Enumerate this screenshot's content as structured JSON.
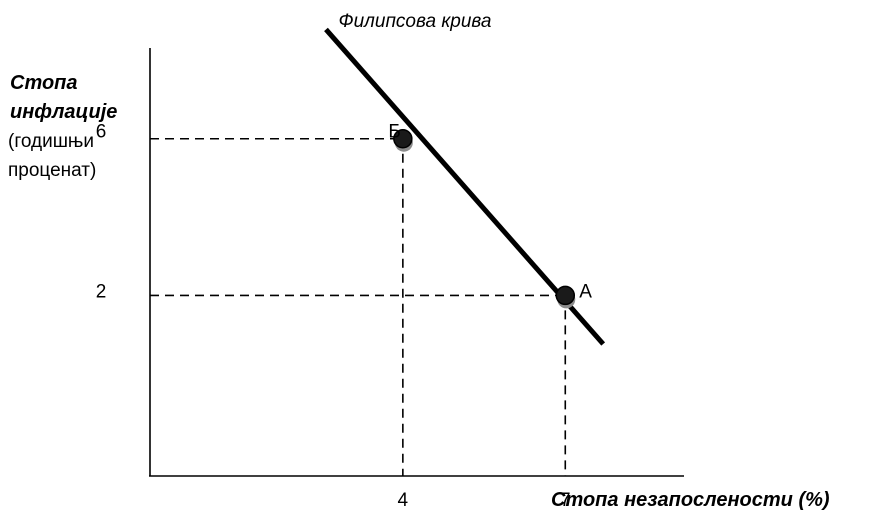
{
  "chart_data": {
    "type": "line",
    "title": "Филипсова крива",
    "ylabel": [
      "Стопа",
      "инфлације",
      "(годишњи",
      "проценат)"
    ],
    "xlabel": "Стопа незапослености (%)",
    "x_ticks": [
      4,
      7
    ],
    "y_ticks": [
      2,
      6
    ],
    "xlim": [
      -0.67,
      12
    ],
    "ylim": [
      -2.61,
      9.21
    ],
    "grid": false,
    "legend": "none",
    "series": [
      {
        "x": [
          2.58,
          7.7
        ],
        "y": [
          8.79,
          0.76
        ],
        "color": "#000000"
      }
    ],
    "points": [
      {
        "label": "Б",
        "x": 4,
        "y": 6
      },
      {
        "label": "А",
        "x": 7,
        "y": 2
      }
    ],
    "colors": {
      "line": "#000000",
      "marker_fill": "#1a1a1a",
      "marker_shadow": "#8c8c8c",
      "guide": "#000000"
    }
  }
}
